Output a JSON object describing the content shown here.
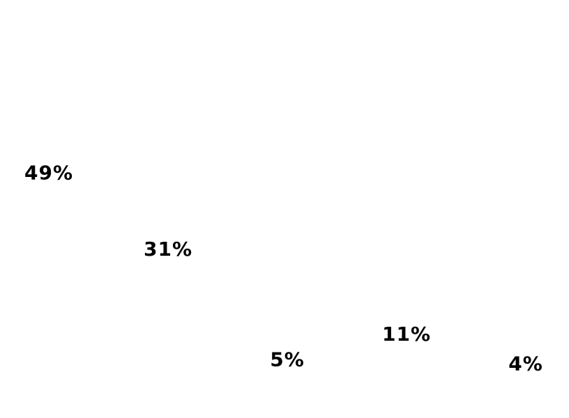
{
  "chart_data": {
    "type": "bar",
    "categories": [
      "",
      "",
      "",
      "",
      ""
    ],
    "values": [
      49,
      31,
      5,
      11,
      4
    ],
    "labels": [
      "49%",
      "31%",
      "5%",
      "11%",
      "4%"
    ],
    "ylim": [
      0,
      100
    ],
    "grid": false,
    "bars_visible": false,
    "label_color": "#000000",
    "background": "#ffffff"
  }
}
